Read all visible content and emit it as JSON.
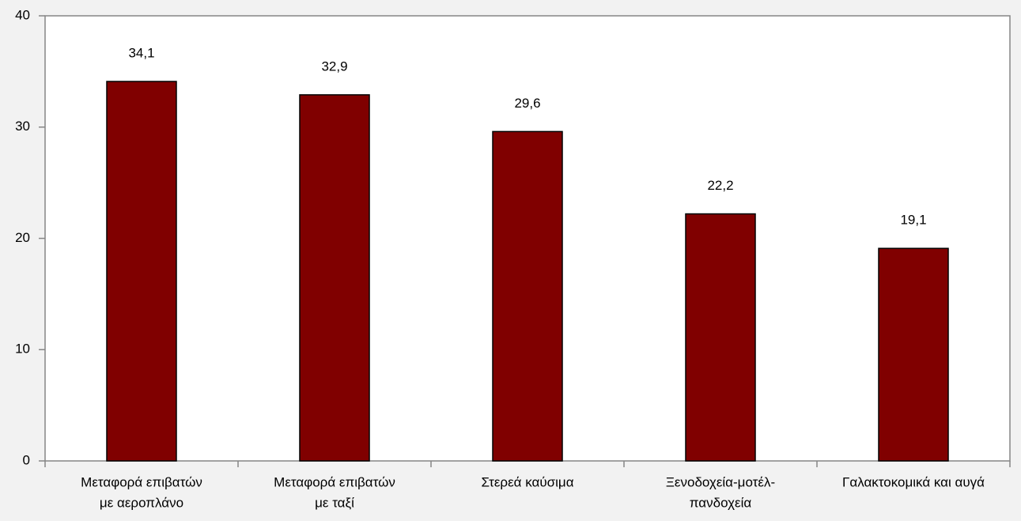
{
  "chart_data": {
    "type": "bar",
    "categories": [
      [
        "Μεταφορά επιβατών",
        "με αεροπλάνο"
      ],
      [
        "Μεταφορά επιβατών",
        "με ταξί"
      ],
      [
        "Στερεά καύσιμα"
      ],
      [
        "Ξενοδοχεία-μοτέλ-",
        "πανδοχεία"
      ],
      [
        "Γαλακτοκομικά και αυγά"
      ]
    ],
    "values": [
      34.1,
      32.9,
      29.6,
      22.2,
      19.1
    ],
    "value_labels": [
      "34,1",
      "32,9",
      "29,6",
      "22,2",
      "19,1"
    ],
    "color": "#800000",
    "ylim": [
      0,
      40
    ],
    "yticks": [
      0,
      10,
      20,
      30,
      40
    ],
    "grid": false
  }
}
